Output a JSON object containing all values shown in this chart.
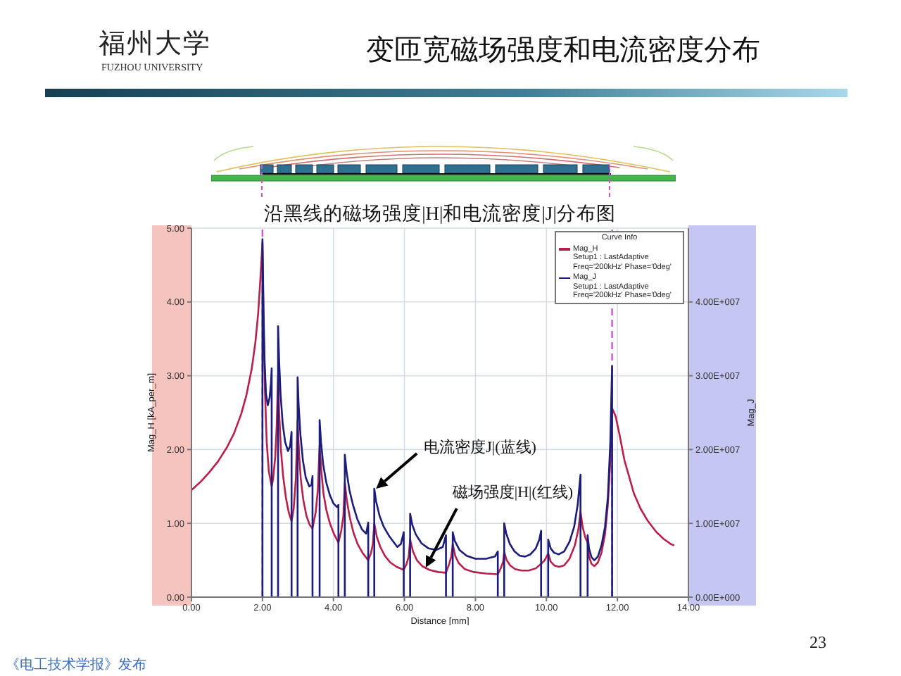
{
  "chart_data": {
    "type": "line",
    "title": "变匝宽磁场强度和电流密度分布",
    "subtitle": "沿黑线的磁场强度|H|和电流密度|J|分布图",
    "xlabel": "Distance [mm]",
    "ylabel": "Mag_H [kA_per_m]",
    "y2label": "Mag_J",
    "legend_title": "Curve Info",
    "annotations": [
      "福州大学",
      "FUZHOU UNIVERSITY",
      {
        "text": "电流密度J|(蓝线)",
        "x": 5.2,
        "y": 1.47
      },
      {
        "text": "磁场强度|H|(红线)",
        "x": 6.6,
        "y": 0.4
      },
      "23",
      "《电工技术学报》发布"
    ],
    "series": [
      {
        "name": "Mag_H\nSetup1 : LastAdaptive\nFreq='200kHz' Phase='0deg'",
        "color": "#b8204a",
        "x": [
          0,
          0.25,
          0.5,
          0.75,
          1.0,
          1.2,
          1.4,
          1.55,
          1.7,
          1.8,
          1.88,
          1.94,
          2.0,
          2.03,
          2.07,
          2.12,
          2.18,
          2.26,
          2.3,
          2.36,
          2.4,
          2.44,
          2.47,
          2.52,
          2.58,
          2.66,
          2.74,
          2.82,
          2.88,
          2.94,
          2.99,
          3.03,
          3.08,
          3.15,
          3.24,
          3.33,
          3.41,
          3.5,
          3.56,
          3.61,
          3.66,
          3.72,
          3.8,
          3.9,
          4.02,
          4.14,
          4.22,
          4.28,
          4.32,
          4.38,
          4.46,
          4.56,
          4.68,
          4.82,
          4.98,
          5.06,
          5.11,
          5.15,
          5.22,
          5.32,
          5.45,
          5.6,
          5.78,
          5.98,
          6.06,
          6.12,
          6.16,
          6.24,
          6.35,
          6.5,
          6.7,
          6.95,
          7.17,
          7.26,
          7.32,
          7.36,
          7.43,
          7.53,
          7.7,
          7.95,
          8.3,
          8.63,
          8.72,
          8.78,
          8.81,
          8.88,
          8.98,
          9.12,
          9.3,
          9.5,
          9.7,
          9.85,
          9.95,
          10.05,
          10.12,
          10.22,
          10.35,
          10.5,
          10.65,
          10.8,
          10.9,
          10.96,
          11.02,
          11.1,
          11.16,
          11.2,
          11.27,
          11.35,
          11.45,
          11.55,
          11.65,
          11.73,
          11.8,
          11.85,
          11.95,
          12.06,
          12.2,
          12.35,
          12.46,
          12.65,
          12.86,
          13.1,
          13.3,
          13.5,
          13.6
        ],
        "values": [
          1.45,
          1.56,
          1.69,
          1.84,
          2.03,
          2.22,
          2.48,
          2.74,
          3.1,
          3.45,
          3.85,
          4.3,
          4.8,
          3.7,
          2.8,
          2.1,
          1.7,
          1.5,
          1.6,
          1.9,
          2.3,
          3.0,
          2.5,
          2.0,
          1.65,
          1.35,
          1.15,
          1.03,
          1.2,
          1.6,
          2.4,
          1.95,
          1.6,
          1.32,
          1.1,
          0.98,
          0.93,
          1.15,
          1.45,
          2.05,
          1.7,
          1.4,
          1.18,
          1.0,
          0.85,
          0.74,
          0.9,
          1.1,
          1.55,
          1.3,
          1.08,
          0.88,
          0.72,
          0.6,
          0.5,
          0.6,
          0.72,
          1.0,
          0.82,
          0.68,
          0.56,
          0.47,
          0.41,
          0.37,
          0.45,
          0.55,
          0.78,
          0.62,
          0.5,
          0.42,
          0.37,
          0.34,
          0.33,
          0.45,
          0.55,
          0.72,
          0.56,
          0.46,
          0.38,
          0.34,
          0.32,
          0.31,
          0.4,
          0.48,
          0.61,
          0.5,
          0.43,
          0.38,
          0.36,
          0.36,
          0.39,
          0.45,
          0.5,
          0.59,
          0.48,
          0.43,
          0.41,
          0.43,
          0.52,
          0.7,
          0.92,
          1.16,
          0.95,
          0.8,
          0.74,
          0.55,
          0.45,
          0.42,
          0.47,
          0.6,
          0.85,
          1.25,
          1.85,
          2.56,
          2.45,
          2.2,
          1.85,
          1.6,
          1.41,
          1.2,
          1.03,
          0.88,
          0.79,
          0.72,
          0.7
        ]
      },
      {
        "name": "Mag_J\nSetup1 : LastAdaptive\nFreq='200kHz' Phase='0deg'",
        "color": "#1c1c7a",
        "axis": "y2",
        "x": [
          2.0,
          2.0,
          2.03,
          2.06,
          2.1,
          2.15,
          2.2,
          2.24,
          2.26,
          2.26,
          2.44,
          2.44,
          2.47,
          2.51,
          2.57,
          2.64,
          2.72,
          2.78,
          2.82,
          2.82,
          2.99,
          2.99,
          3.02,
          3.07,
          3.14,
          3.22,
          3.32,
          3.38,
          3.41,
          3.41,
          3.61,
          3.61,
          3.65,
          3.71,
          3.8,
          3.9,
          4.0,
          4.1,
          4.14,
          4.14,
          4.32,
          4.32,
          4.37,
          4.45,
          4.55,
          4.67,
          4.8,
          4.92,
          4.98,
          4.98,
          5.15,
          5.15,
          5.2,
          5.3,
          5.42,
          5.58,
          5.8,
          5.9,
          5.98,
          5.98,
          6.16,
          6.16,
          6.22,
          6.32,
          6.48,
          6.68,
          6.9,
          7.08,
          7.17,
          7.17,
          7.36,
          7.36,
          7.42,
          7.55,
          7.75,
          8.0,
          8.3,
          8.55,
          8.63,
          8.63,
          8.81,
          8.81,
          8.87,
          8.97,
          9.1,
          9.25,
          9.4,
          9.55,
          9.7,
          9.8,
          9.85,
          9.85,
          10.05,
          10.05,
          10.12,
          10.22,
          10.35,
          10.5,
          10.65,
          10.78,
          10.88,
          10.96,
          10.96,
          11.16,
          11.16,
          11.2,
          11.27,
          11.35,
          11.45,
          11.55,
          11.65,
          11.73,
          11.8,
          11.85,
          11.85
        ],
        "values": [
          0,
          48500000,
          39000000,
          32000000,
          27500000,
          26000000,
          27000000,
          29000000,
          31000000,
          0,
          0,
          36700000,
          32000000,
          27500000,
          23500000,
          21000000,
          19800000,
          20500000,
          22400000,
          0,
          0,
          29800000,
          26000000,
          22000000,
          18500000,
          16200000,
          15000000,
          15200000,
          16400000,
          0,
          0,
          24000000,
          21000000,
          18000000,
          15500000,
          13800000,
          12700000,
          12200000,
          12500000,
          0,
          0,
          19300000,
          17000000,
          14500000,
          12500000,
          10600000,
          9200000,
          8600000,
          10100000,
          0,
          0,
          14700000,
          13000000,
          11000000,
          9500000,
          8200000,
          6800000,
          7200000,
          8800000,
          0,
          0,
          11300000,
          9800000,
          8500000,
          7300000,
          6600000,
          6400000,
          6800000,
          8400000,
          0,
          0,
          8800000,
          7600000,
          6400000,
          5600000,
          5200000,
          5200000,
          5500000,
          6200000,
          0,
          0,
          10000000,
          8600000,
          7200000,
          6200000,
          5600000,
          5500000,
          5800000,
          6600000,
          7800000,
          9000000,
          0,
          0,
          7800000,
          6600000,
          6000000,
          5800000,
          6200000,
          7500000,
          9500000,
          12500000,
          16600000,
          0,
          0,
          8400000,
          6600000,
          5400000,
          5000000,
          5500000,
          7000000,
          9500000,
          13500000,
          21000000,
          31300000,
          0
        ]
      }
    ],
    "xlim": [
      0,
      14
    ],
    "xticks": [
      {
        "value": 0,
        "label": "0.00"
      },
      {
        "value": 2,
        "label": "2.00"
      },
      {
        "value": 4,
        "label": "4.00"
      },
      {
        "value": 6,
        "label": "6.00"
      },
      {
        "value": 8,
        "label": "8.00"
      },
      {
        "value": 10,
        "label": "10.00"
      },
      {
        "value": 12,
        "label": "12.00"
      },
      {
        "value": 14,
        "label": "14.00"
      }
    ],
    "ylim": [
      0,
      5
    ],
    "yticks": [
      {
        "value": 0,
        "label": "0.00"
      },
      {
        "value": 1,
        "label": "1.00"
      },
      {
        "value": 2,
        "label": "2.00"
      },
      {
        "value": 3,
        "label": "3.00"
      },
      {
        "value": 4,
        "label": "4.00"
      },
      {
        "value": 5,
        "label": "5.00"
      }
    ],
    "y2lim": [
      0,
      50000000
    ],
    "y2ticks": [
      {
        "value": 0,
        "label": "0.00E+000"
      },
      {
        "value": 10000000,
        "label": "1.00E+007"
      },
      {
        "value": 20000000,
        "label": "2.00E+007"
      },
      {
        "value": 30000000,
        "label": "3.00E+007"
      },
      {
        "value": 40000000,
        "label": "4.00E+007"
      }
    ],
    "ref_lines": [
      {
        "axis": "x",
        "value": 2.0,
        "color": "#cc55cc",
        "line_style": "dashed"
      },
      {
        "axis": "x",
        "value": 11.85,
        "color": "#cc55cc",
        "line_style": "dashed"
      }
    ],
    "grid": true,
    "legend": "top right"
  }
}
